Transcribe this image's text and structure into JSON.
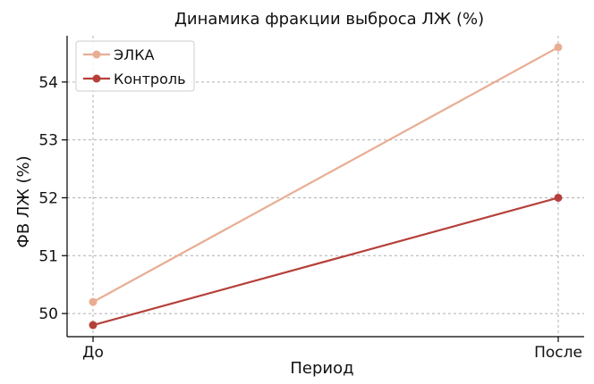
{
  "chart_data": {
    "type": "line",
    "title": "Динамика фракции выброса ЛЖ (%)",
    "xlabel": "Период",
    "ylabel": "ФВ ЛЖ (%)",
    "categories": [
      "До",
      "После"
    ],
    "ylim": [
      49.6,
      54.8
    ],
    "yticks": [
      50,
      51,
      52,
      53,
      54
    ],
    "grid": true,
    "legend_position": "top-left",
    "series": [
      {
        "name": "ЭЛКА",
        "values": [
          50.2,
          54.6
        ],
        "color": "#e8ad93"
      },
      {
        "name": "Контроль",
        "values": [
          49.8,
          52.0
        ],
        "color": "#b5403a"
      }
    ]
  }
}
